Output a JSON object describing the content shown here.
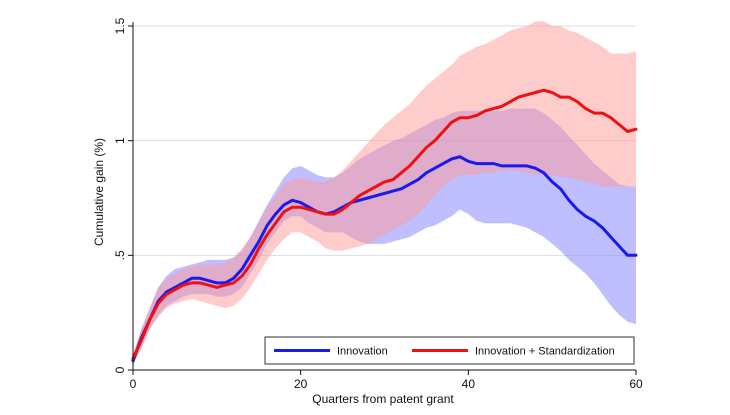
{
  "chart_data": {
    "type": "line",
    "title": "",
    "xlabel": "Quarters from patent grant",
    "ylabel": "Cumulative gain (%)",
    "xlim": [
      0,
      60
    ],
    "ylim": [
      0,
      1.5
    ],
    "x_ticks": [
      0,
      20,
      40,
      60
    ],
    "x_tick_labels": [
      "0",
      "20",
      "40",
      "60"
    ],
    "y_ticks": [
      0,
      0.5,
      1,
      1.5
    ],
    "y_tick_labels": [
      "0",
      ".5",
      "1",
      "1.5"
    ],
    "grid": "horizontal",
    "legend_position": "bottom-right",
    "x": [
      0,
      1,
      2,
      3,
      4,
      5,
      6,
      7,
      8,
      9,
      10,
      11,
      12,
      13,
      14,
      15,
      16,
      17,
      18,
      19,
      20,
      21,
      22,
      23,
      24,
      25,
      26,
      27,
      28,
      29,
      30,
      31,
      32,
      33,
      34,
      35,
      36,
      37,
      38,
      39,
      40,
      41,
      42,
      43,
      44,
      45,
      46,
      47,
      48,
      49,
      50,
      51,
      52,
      53,
      54,
      55,
      56,
      57,
      58,
      59,
      60
    ],
    "series": [
      {
        "name": "Innovation",
        "color": "#1a1aee",
        "band_color": "#8080ff",
        "values": [
          0.04,
          0.14,
          0.22,
          0.3,
          0.34,
          0.36,
          0.38,
          0.4,
          0.4,
          0.39,
          0.38,
          0.38,
          0.4,
          0.44,
          0.5,
          0.56,
          0.63,
          0.68,
          0.72,
          0.74,
          0.73,
          0.71,
          0.69,
          0.68,
          0.69,
          0.71,
          0.73,
          0.74,
          0.75,
          0.76,
          0.77,
          0.78,
          0.79,
          0.81,
          0.83,
          0.86,
          0.88,
          0.9,
          0.92,
          0.93,
          0.91,
          0.9,
          0.9,
          0.9,
          0.89,
          0.89,
          0.89,
          0.89,
          0.88,
          0.86,
          0.82,
          0.79,
          0.74,
          0.7,
          0.67,
          0.65,
          0.62,
          0.58,
          0.54,
          0.5,
          0.5
        ],
        "lower": [
          0.02,
          0.1,
          0.18,
          0.24,
          0.28,
          0.3,
          0.32,
          0.33,
          0.33,
          0.33,
          0.32,
          0.32,
          0.33,
          0.36,
          0.42,
          0.48,
          0.55,
          0.6,
          0.65,
          0.67,
          0.67,
          0.64,
          0.62,
          0.6,
          0.6,
          0.6,
          0.58,
          0.56,
          0.55,
          0.55,
          0.55,
          0.56,
          0.57,
          0.58,
          0.6,
          0.62,
          0.63,
          0.65,
          0.67,
          0.7,
          0.68,
          0.65,
          0.64,
          0.64,
          0.64,
          0.64,
          0.63,
          0.62,
          0.6,
          0.58,
          0.55,
          0.52,
          0.48,
          0.45,
          0.42,
          0.38,
          0.33,
          0.28,
          0.24,
          0.21,
          0.2
        ],
        "upper": [
          0.06,
          0.18,
          0.27,
          0.36,
          0.41,
          0.44,
          0.45,
          0.46,
          0.47,
          0.48,
          0.48,
          0.48,
          0.49,
          0.52,
          0.58,
          0.65,
          0.72,
          0.78,
          0.84,
          0.88,
          0.89,
          0.87,
          0.85,
          0.84,
          0.84,
          0.86,
          0.89,
          0.92,
          0.94,
          0.96,
          0.98,
          1.0,
          1.01,
          1.03,
          1.05,
          1.07,
          1.09,
          1.1,
          1.12,
          1.13,
          1.13,
          1.13,
          1.13,
          1.13,
          1.13,
          1.14,
          1.14,
          1.14,
          1.14,
          1.12,
          1.09,
          1.06,
          1.02,
          0.98,
          0.94,
          0.9,
          0.87,
          0.84,
          0.81,
          0.8,
          0.8
        ]
      },
      {
        "name": "Innovation + Standardization",
        "color": "#ee1111",
        "band_color": "#ff9a9a",
        "values": [
          0.05,
          0.13,
          0.22,
          0.29,
          0.33,
          0.35,
          0.37,
          0.38,
          0.38,
          0.37,
          0.36,
          0.37,
          0.38,
          0.41,
          0.46,
          0.53,
          0.59,
          0.64,
          0.69,
          0.71,
          0.71,
          0.7,
          0.69,
          0.68,
          0.68,
          0.7,
          0.73,
          0.76,
          0.78,
          0.8,
          0.82,
          0.83,
          0.86,
          0.89,
          0.93,
          0.97,
          1.0,
          1.04,
          1.08,
          1.1,
          1.1,
          1.11,
          1.13,
          1.14,
          1.15,
          1.17,
          1.19,
          1.2,
          1.21,
          1.22,
          1.21,
          1.19,
          1.19,
          1.17,
          1.14,
          1.12,
          1.12,
          1.1,
          1.07,
          1.04,
          1.05
        ],
        "lower": [
          0.03,
          0.09,
          0.18,
          0.23,
          0.27,
          0.29,
          0.3,
          0.31,
          0.3,
          0.29,
          0.28,
          0.27,
          0.28,
          0.31,
          0.36,
          0.42,
          0.48,
          0.53,
          0.57,
          0.6,
          0.6,
          0.58,
          0.56,
          0.53,
          0.52,
          0.52,
          0.53,
          0.54,
          0.55,
          0.57,
          0.59,
          0.61,
          0.63,
          0.65,
          0.68,
          0.72,
          0.76,
          0.8,
          0.83,
          0.85,
          0.85,
          0.85,
          0.86,
          0.86,
          0.87,
          0.87,
          0.87,
          0.86,
          0.85,
          0.85,
          0.85,
          0.84,
          0.84,
          0.83,
          0.82,
          0.81,
          0.8,
          0.8,
          0.8,
          0.8,
          0.8
        ],
        "upper": [
          0.07,
          0.18,
          0.27,
          0.36,
          0.4,
          0.42,
          0.44,
          0.45,
          0.46,
          0.46,
          0.46,
          0.47,
          0.49,
          0.53,
          0.58,
          0.64,
          0.71,
          0.76,
          0.81,
          0.83,
          0.84,
          0.83,
          0.82,
          0.82,
          0.84,
          0.87,
          0.91,
          0.95,
          0.99,
          1.03,
          1.07,
          1.1,
          1.13,
          1.16,
          1.2,
          1.24,
          1.27,
          1.3,
          1.33,
          1.37,
          1.39,
          1.41,
          1.42,
          1.44,
          1.46,
          1.48,
          1.49,
          1.5,
          1.52,
          1.52,
          1.5,
          1.5,
          1.48,
          1.47,
          1.45,
          1.43,
          1.41,
          1.38,
          1.38,
          1.38,
          1.39
        ]
      }
    ]
  }
}
